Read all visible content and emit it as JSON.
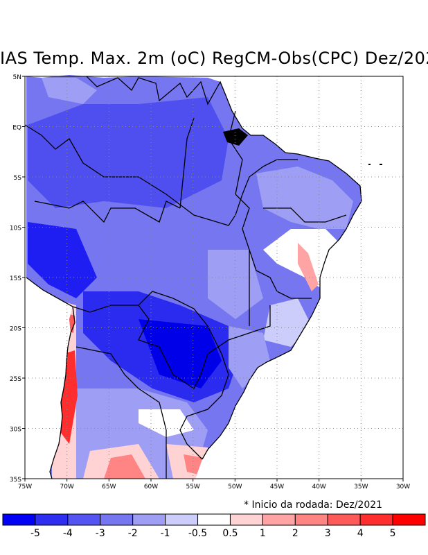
{
  "title": "IAS Temp. Max. 2m (oC) RegCM-Obs(CPC) Dez/202",
  "map": {
    "lat_ticks": [
      "5N",
      "EQ",
      "5S",
      "10S",
      "15S",
      "20S",
      "25S",
      "30S",
      "35S"
    ],
    "lon_ticks": [
      "75W",
      "70W",
      "65W",
      "60W",
      "55W",
      "50W",
      "45W",
      "40W",
      "35W",
      "30W"
    ],
    "lon_range": [
      -75,
      -30
    ],
    "lat_range": [
      -35,
      5
    ],
    "grid": true
  },
  "note": "* Inicio da rodada: Dez/2021",
  "colorbar": {
    "colors": [
      "#0000f5",
      "#2e2ef0",
      "#5454f2",
      "#7676f0",
      "#9e9ef4",
      "#cdcdfb",
      "#ffffff",
      "#ffd3d3",
      "#ffa4a4",
      "#ff8585",
      "#ff5a5a",
      "#ff2e2e",
      "#ff0000"
    ],
    "labels": [
      "-5",
      "-4",
      "-3",
      "-2",
      "-1",
      "-0.5",
      "0.5",
      "1",
      "2",
      "3",
      "4",
      "5"
    ]
  },
  "colors": {
    "strong_blue": "#3d3df0",
    "medium_blue": "#6a6af2",
    "light_blue": "#9a9af6",
    "pale_blue": "#cfcffb",
    "pink": "#ffb0b0",
    "red": "#ff4a4a",
    "boundary": "#000000"
  }
}
